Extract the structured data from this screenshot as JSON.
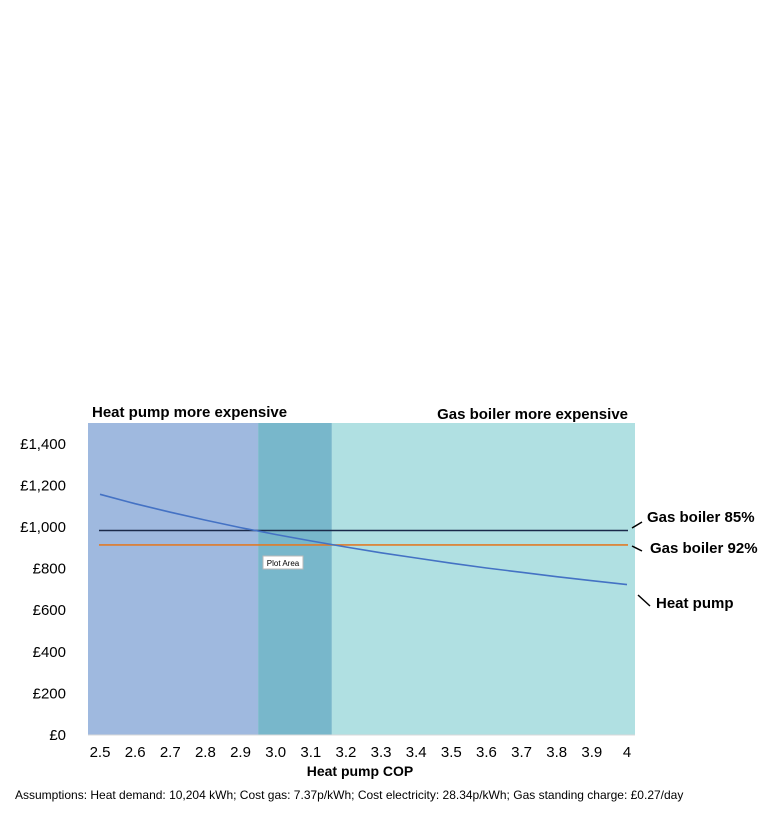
{
  "chart_data": {
    "type": "line",
    "xlabel": "Heat pump COP",
    "ylabel": "",
    "x": [
      2.5,
      2.6,
      2.7,
      2.8,
      2.9,
      3.0,
      3.1,
      3.2,
      3.3,
      3.4,
      3.5,
      3.6,
      3.7,
      3.8,
      3.9,
      4.0
    ],
    "x_tick_labels": [
      "2.5",
      "2.6",
      "2.7",
      "2.8",
      "2.9",
      "3.0",
      "3.1",
      "3.2",
      "3.3",
      "3.4",
      "3.5",
      "3.6",
      "3.7",
      "3.8",
      "3.9",
      "4"
    ],
    "ylim": [
      0,
      1500
    ],
    "y_ticks": [
      0,
      200,
      400,
      600,
      800,
      1000,
      1200,
      1400
    ],
    "y_tick_labels": [
      "£0",
      "£200",
      "£400",
      "£600",
      "£800",
      "£1,000",
      "£1,200",
      "£1,400"
    ],
    "series": [
      {
        "name": "Gas boiler 85%",
        "color": "#1b2a4a",
        "values": [
          983,
          983,
          983,
          983,
          983,
          983,
          983,
          983,
          983,
          983,
          983,
          983,
          983,
          983,
          983,
          983
        ]
      },
      {
        "name": "Gas boiler 92%",
        "color": "#e07b28",
        "values": [
          914,
          914,
          914,
          914,
          914,
          914,
          914,
          914,
          914,
          914,
          914,
          914,
          914,
          914,
          914,
          914
        ]
      },
      {
        "name": "Heat pump",
        "color": "#4472c4",
        "values": [
          1157,
          1112,
          1071,
          1033,
          997,
          964,
          933,
          904,
          876,
          851,
          826,
          803,
          782,
          761,
          742,
          723
        ]
      }
    ],
    "regions": [
      {
        "label": "Heat pump more expensive",
        "x_from": 2.5,
        "x_to": 2.95,
        "color": "#9fb9df"
      },
      {
        "label": "",
        "x_from": 2.95,
        "x_to": 3.16,
        "color": "#78b7cb"
      },
      {
        "label": "Gas boiler more expensive",
        "x_from": 3.16,
        "x_to": 4.0,
        "color": "#b0e0e2"
      }
    ],
    "annotations": [
      "Plot Area"
    ],
    "grid": false,
    "legend": "inline-right"
  },
  "footnote": "Assumptions: Heat demand: 10,204 kWh; Cost gas: 7.37p/kWh; Cost electricity: 28.34p/kWh; Gas standing charge: £0.27/day"
}
